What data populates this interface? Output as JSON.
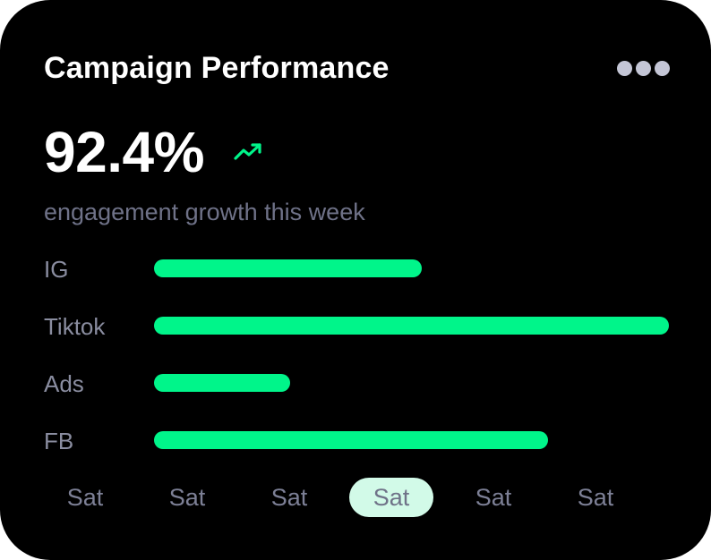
{
  "card": {
    "title": "Campaign Performance",
    "more_icon": "more-horizontal-icon",
    "metric_value": "92.4%",
    "trend_icon": "trending-up-icon",
    "subtitle": "engagement growth this week"
  },
  "colors": {
    "background": "#000000",
    "accent": "#00f58a",
    "muted_text": "#6f7288",
    "active_tab": "#d2fae8"
  },
  "bars": [
    {
      "label": "IG",
      "value": 0.52
    },
    {
      "label": "Tiktok",
      "value": 1.0
    },
    {
      "label": "Ads",
      "value": 0.265
    },
    {
      "label": "FB",
      "value": 0.765
    }
  ],
  "days": [
    {
      "label": "Sat",
      "active": false
    },
    {
      "label": "Sat",
      "active": false
    },
    {
      "label": "Sat",
      "active": false
    },
    {
      "label": "Sat",
      "active": true
    },
    {
      "label": "Sat",
      "active": false
    },
    {
      "label": "Sat",
      "active": false
    }
  ]
}
